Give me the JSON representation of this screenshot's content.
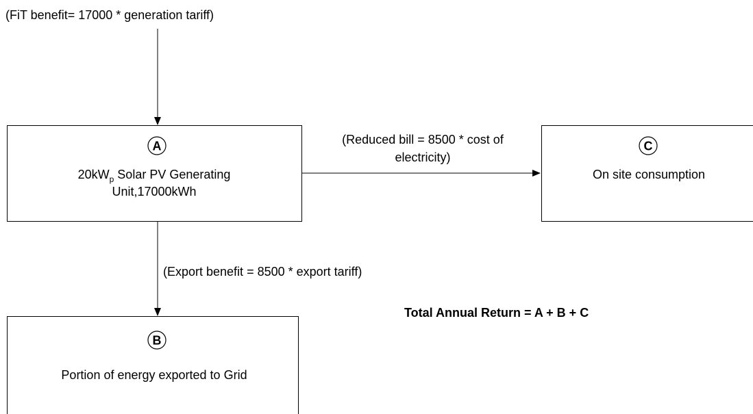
{
  "annotations": {
    "fit_benefit": "(FiT benefit= 17000 * generation tariff)",
    "reduced_bill": [
      "(Reduced bill = 8500 * cost of",
      "electricity)"
    ],
    "export_benefit": "(Export benefit = 8500 * export tariff)",
    "total": "Total Annual Return = A + B + C"
  },
  "nodes": [
    {
      "id": "A",
      "label": {
        "unit_base": "20kW",
        "unit_sub": "p",
        "rest": "Solar PV Generating",
        "line2": "Unit,17000kWh"
      }
    },
    {
      "id": "B",
      "label": "Portion of energy exported to Grid"
    },
    {
      "id": "C",
      "label": "On site consumption"
    }
  ]
}
